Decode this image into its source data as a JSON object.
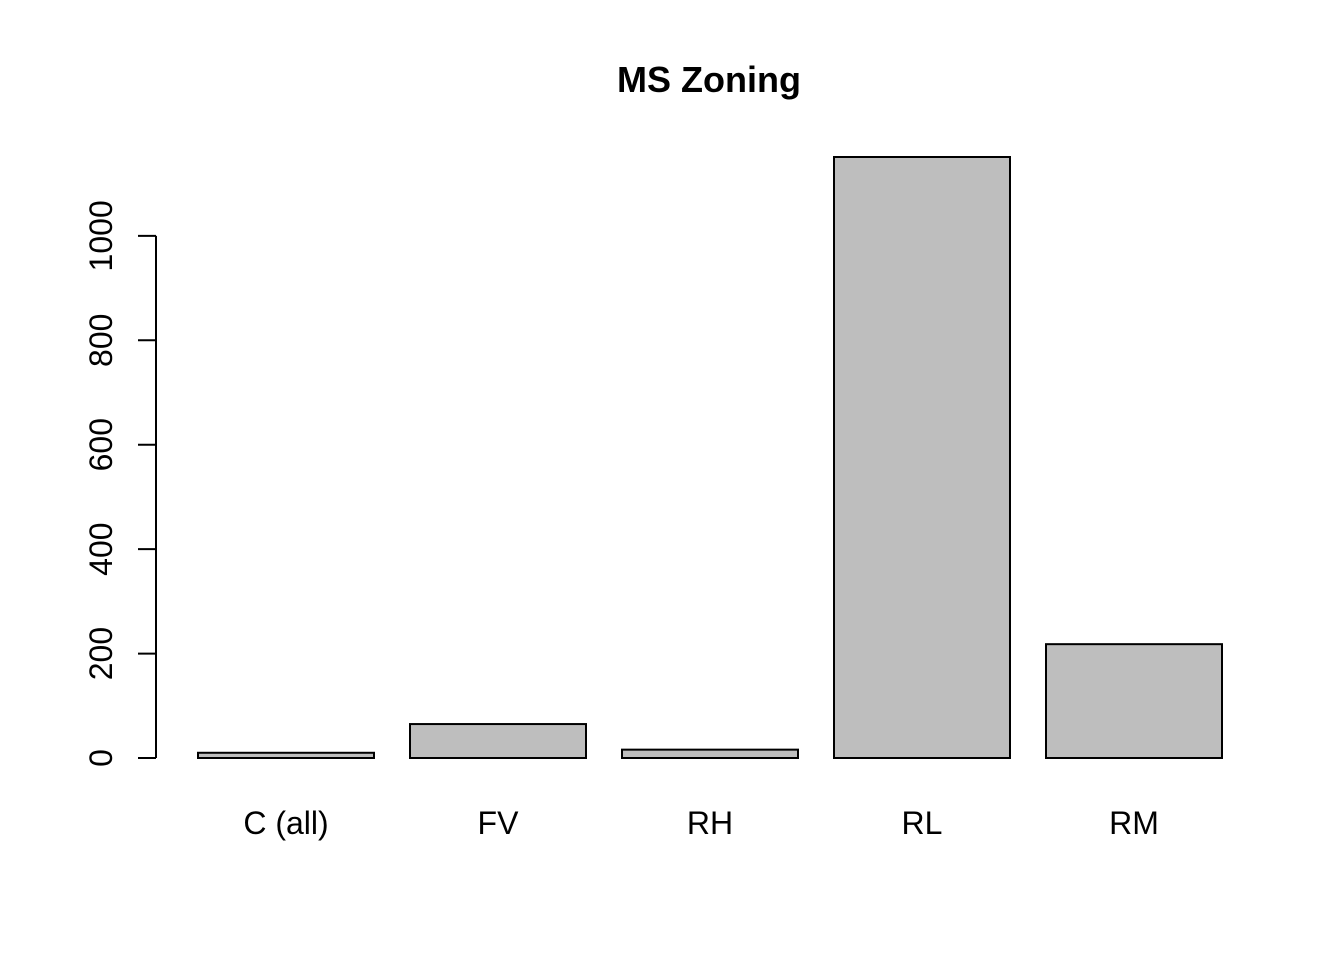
{
  "chart_data": {
    "type": "bar",
    "title": "MS Zoning",
    "xlabel": "",
    "ylabel": "",
    "categories": [
      "C (all)",
      "FV",
      "RH",
      "RL",
      "RM"
    ],
    "values": [
      10,
      65,
      16,
      1151,
      218
    ],
    "ylim": [
      0,
      1151
    ],
    "y_ticks": [
      0,
      200,
      400,
      600,
      800,
      1000
    ],
    "y_tick_labels": [
      "0",
      "200",
      "400",
      "600",
      "800",
      "1000"
    ],
    "bar_color": "#bebebe",
    "grid": false,
    "legend": "none"
  }
}
